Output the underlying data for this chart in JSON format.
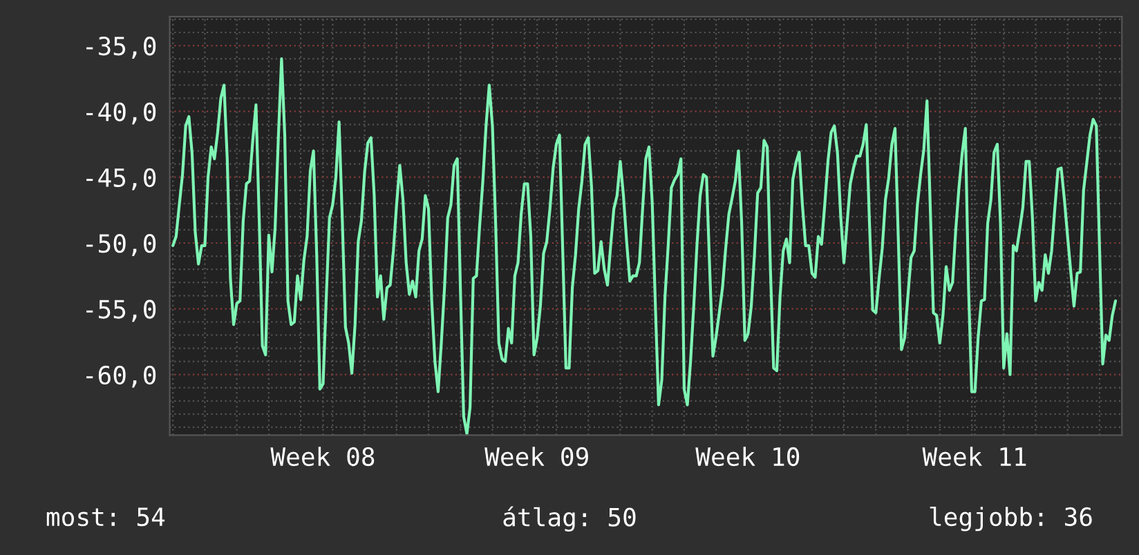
{
  "chart_data": {
    "type": "line",
    "categories": [
      null,
      null,
      null,
      null,
      null,
      null,
      null,
      null,
      null,
      null,
      null,
      null,
      null,
      null,
      null,
      null,
      null,
      null,
      null,
      null,
      null,
      null,
      null,
      null,
      null,
      null,
      null,
      null,
      null,
      null,
      null,
      null,
      null,
      null,
      null,
      null,
      null,
      null,
      null,
      null,
      null,
      null,
      null,
      null,
      null,
      null,
      null,
      "Week 08",
      null,
      null,
      null,
      null,
      null,
      null,
      null,
      null,
      null,
      null,
      null,
      null,
      null,
      null,
      null,
      null,
      null,
      null,
      null,
      null,
      null,
      null,
      null,
      null,
      null,
      null,
      null,
      null,
      null,
      null,
      null,
      null,
      null,
      null,
      null,
      null,
      null,
      null,
      null,
      null,
      null,
      null,
      null,
      null,
      null,
      null,
      null,
      null,
      null,
      null,
      null,
      null,
      null,
      null,
      null,
      null,
      null,
      null,
      null,
      null,
      null,
      null,
      null,
      null,
      null,
      null,
      "Week 09",
      null,
      null,
      null,
      null,
      null,
      null,
      null,
      null,
      null,
      null,
      null,
      null,
      null,
      null,
      null,
      null,
      null,
      null,
      null,
      null,
      null,
      null,
      null,
      null,
      null,
      null,
      null,
      null,
      null,
      null,
      null,
      null,
      null,
      null,
      null,
      null,
      null,
      null,
      null,
      null,
      null,
      null,
      null,
      null,
      null,
      null,
      null,
      null,
      null,
      null,
      null,
      null,
      null,
      null,
      null,
      null,
      null,
      null,
      null,
      null,
      null,
      null,
      null,
      null,
      null,
      "Week 10",
      null,
      null,
      null,
      null,
      null,
      null,
      null,
      null,
      null,
      null,
      null,
      null,
      null,
      null,
      null,
      null,
      null,
      null,
      null,
      null,
      null,
      null,
      null,
      null,
      null,
      null,
      null,
      null,
      null,
      null,
      null,
      null,
      null,
      null,
      null,
      null,
      null,
      null,
      null,
      null,
      null,
      null,
      null,
      null,
      null,
      null,
      null,
      null,
      null,
      null,
      null,
      null,
      null,
      null,
      null,
      null,
      null,
      null,
      null,
      null,
      null,
      null,
      null,
      null,
      null,
      null,
      null,
      null,
      null,
      null,
      "Week 11",
      null,
      null,
      null,
      null,
      null,
      null,
      null,
      null,
      null,
      null,
      null,
      null,
      null,
      null,
      null,
      null,
      null,
      null,
      null,
      null,
      null,
      null,
      null,
      null,
      null,
      null,
      null,
      null,
      null,
      null,
      null,
      null,
      null,
      null,
      null,
      null,
      null,
      null,
      null,
      null,
      null,
      null,
      null,
      null
    ],
    "series": [
      {
        "color": "#7ff5b4",
        "values": [
          -50.2,
          -49.5,
          -47.1,
          -44.8,
          -41.1,
          -40.4,
          -43.2,
          -49.2,
          -51.6,
          -50.2,
          -50.2,
          -45.0,
          -42.7,
          -43.6,
          -41.6,
          -39.0,
          -38.0,
          -43.6,
          -52.7,
          -56.2,
          -54.6,
          -54.4,
          -48.3,
          -45.5,
          -45.3,
          -42.2,
          -39.5,
          -48.1,
          -57.8,
          -58.5,
          -49.4,
          -52.2,
          -48.8,
          -42.0,
          -36.0,
          -41.8,
          -54.4,
          -56.2,
          -56.0,
          -52.5,
          -54.3,
          -51.3,
          -49.5,
          -44.5,
          -43.0,
          -50.9,
          -61.1,
          -60.7,
          -54.1,
          -48.1,
          -47.1,
          -45.0,
          -40.8,
          -48.1,
          -56.4,
          -57.6,
          -59.9,
          -56.2,
          -49.9,
          -48.3,
          -44.6,
          -42.4,
          -42.0,
          -46.4,
          -54.1,
          -52.5,
          -55.8,
          -53.4,
          -53.2,
          -50.6,
          -47.1,
          -44.1,
          -46.7,
          -51.5,
          -53.9,
          -52.9,
          -54.1,
          -50.6,
          -49.7,
          -46.4,
          -47.4,
          -54.4,
          -59.0,
          -61.3,
          -57.6,
          -53.4,
          -48.1,
          -47.1,
          -44.1,
          -43.6,
          -53.7,
          -63.2,
          -64.5,
          -62.5,
          -52.7,
          -52.5,
          -48.7,
          -45.3,
          -41.1,
          -38.0,
          -41.1,
          -48.5,
          -57.6,
          -58.8,
          -59.0,
          -56.5,
          -57.6,
          -52.5,
          -51.5,
          -47.8,
          -45.5,
          -45.5,
          -49.5,
          -58.5,
          -57.2,
          -54.8,
          -50.8,
          -49.9,
          -47.4,
          -44.3,
          -42.5,
          -41.8,
          -50.6,
          -59.5,
          -59.5,
          -53.4,
          -50.9,
          -47.4,
          -45.3,
          -42.5,
          -42.0,
          -45.7,
          -52.3,
          -52.1,
          -49.9,
          -52.0,
          -53.2,
          -50.2,
          -47.4,
          -46.4,
          -43.8,
          -46.4,
          -49.9,
          -52.9,
          -52.5,
          -52.5,
          -51.5,
          -47.4,
          -43.6,
          -42.7,
          -46.9,
          -54.8,
          -62.3,
          -60.4,
          -54.1,
          -50.2,
          -45.8,
          -45.2,
          -44.8,
          -43.6,
          -61.1,
          -62.3,
          -59.0,
          -54.8,
          -50.2,
          -46.4,
          -44.8,
          -45.0,
          -52.0,
          -58.6,
          -57.1,
          -55.3,
          -53.4,
          -50.4,
          -47.8,
          -46.6,
          -45.3,
          -43.0,
          -48.5,
          -57.4,
          -56.9,
          -54.8,
          -50.9,
          -46.2,
          -45.8,
          -42.2,
          -42.7,
          -52.0,
          -59.5,
          -59.7,
          -54.1,
          -50.6,
          -49.7,
          -51.5,
          -45.2,
          -43.9,
          -43.1,
          -47.1,
          -50.2,
          -50.2,
          -52.3,
          -52.6,
          -49.5,
          -50.1,
          -47.1,
          -43.8,
          -41.6,
          -41.1,
          -43.2,
          -48.0,
          -51.5,
          -48.5,
          -45.5,
          -44.3,
          -43.4,
          -43.4,
          -42.5,
          -41.0,
          -48.5,
          -55.1,
          -55.3,
          -52.7,
          -50.4,
          -46.7,
          -45.1,
          -42.5,
          -41.3,
          -49.5,
          -58.1,
          -57.2,
          -54.1,
          -51.1,
          -50.6,
          -47.1,
          -44.8,
          -42.9,
          -39.2,
          -47.1,
          -55.3,
          -55.5,
          -57.6,
          -55.5,
          -51.8,
          -53.6,
          -53.0,
          -49.0,
          -45.8,
          -43.2,
          -41.3,
          -53.4,
          -61.3,
          -61.3,
          -57.2,
          -54.4,
          -54.3,
          -48.5,
          -46.7,
          -43.1,
          -42.5,
          -48.5,
          -59.5,
          -56.9,
          -60.0,
          -50.2,
          -50.6,
          -49.0,
          -47.3,
          -43.8,
          -43.8,
          -48.1,
          -54.4,
          -53.0,
          -53.6,
          -50.9,
          -52.3,
          -50.6,
          -47.4,
          -44.4,
          -44.3,
          -46.7,
          -49.5,
          -52.2,
          -54.8,
          -52.3,
          -52.2,
          -46.0,
          -43.9,
          -41.8,
          -40.6,
          -41.1,
          -50.4,
          -59.2,
          -57.0,
          -57.4,
          -55.5,
          -54.4
        ]
      }
    ],
    "ylim": [
      -64.6,
      -32.8
    ],
    "yticks": [
      {
        "value": -35,
        "label": "-35,0"
      },
      {
        "value": -40,
        "label": "-40,0"
      },
      {
        "value": -45,
        "label": "-45,0"
      },
      {
        "value": -50,
        "label": "-50,0"
      },
      {
        "value": -55,
        "label": "-55,0"
      },
      {
        "value": -60,
        "label": "-60,0"
      }
    ],
    "grid": true,
    "annotations": [
      "most: 54",
      "átlag: 50",
      "legjobb: 36"
    ]
  }
}
